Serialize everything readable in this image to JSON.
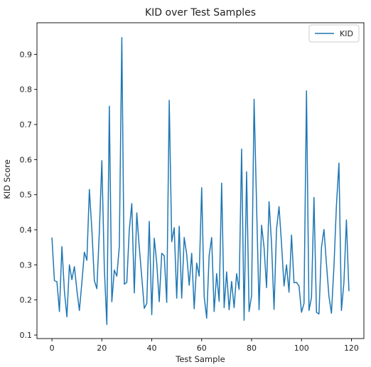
{
  "chart_data": {
    "type": "line",
    "title": "KID over Test Samples",
    "xlabel": "Test Sample",
    "ylabel": "KID Score",
    "xlim": [
      -6,
      125
    ],
    "ylim": [
      0.09,
      0.99
    ],
    "xticks": [
      0,
      20,
      40,
      60,
      80,
      100,
      120
    ],
    "yticks": [
      0.1,
      0.2,
      0.3,
      0.4,
      0.5,
      0.6,
      0.7,
      0.8,
      0.9
    ],
    "grid": false,
    "legend": "top-right",
    "series": [
      {
        "name": "KID",
        "color": "#1f77b4",
        "x": [
          0,
          1,
          2,
          3,
          4,
          5,
          6,
          7,
          8,
          9,
          10,
          11,
          12,
          13,
          14,
          15,
          16,
          17,
          18,
          19,
          20,
          21,
          22,
          23,
          24,
          25,
          26,
          27,
          28,
          29,
          30,
          31,
          32,
          33,
          34,
          35,
          36,
          37,
          38,
          39,
          40,
          41,
          42,
          43,
          44,
          45,
          46,
          47,
          48,
          49,
          50,
          51,
          52,
          53,
          54,
          55,
          56,
          57,
          58,
          59,
          60,
          61,
          62,
          63,
          64,
          65,
          66,
          67,
          68,
          69,
          70,
          71,
          72,
          73,
          74,
          75,
          76,
          77,
          78,
          79,
          80,
          81,
          82,
          83,
          84,
          85,
          86,
          87,
          88,
          89,
          90,
          91,
          92,
          93,
          94,
          95,
          96,
          97,
          98,
          99,
          100,
          101,
          102,
          103,
          104,
          105,
          106,
          107,
          108,
          109,
          110,
          111,
          112,
          113,
          114,
          115,
          116,
          117,
          118,
          119
        ],
        "values": [
          0.378,
          0.255,
          0.252,
          0.167,
          0.352,
          0.225,
          0.152,
          0.3,
          0.258,
          0.295,
          0.228,
          0.17,
          0.25,
          0.336,
          0.313,
          0.515,
          0.4,
          0.255,
          0.232,
          0.395,
          0.597,
          0.29,
          0.13,
          0.752,
          0.195,
          0.285,
          0.268,
          0.352,
          0.948,
          0.245,
          0.25,
          0.4,
          0.475,
          0.22,
          0.448,
          0.35,
          0.265,
          0.176,
          0.19,
          0.424,
          0.158,
          0.376,
          0.305,
          0.195,
          0.333,
          0.326,
          0.193,
          0.769,
          0.366,
          0.406,
          0.205,
          0.41,
          0.205,
          0.378,
          0.33,
          0.242,
          0.333,
          0.175,
          0.305,
          0.268,
          0.52,
          0.21,
          0.148,
          0.327,
          0.378,
          0.167,
          0.275,
          0.196,
          0.533,
          0.178,
          0.28,
          0.172,
          0.253,
          0.178,
          0.275,
          0.23,
          0.63,
          0.142,
          0.565,
          0.167,
          0.212,
          0.772,
          0.47,
          0.172,
          0.413,
          0.35,
          0.235,
          0.48,
          0.36,
          0.173,
          0.402,
          0.466,
          0.36,
          0.24,
          0.3,
          0.222,
          0.385,
          0.249,
          0.25,
          0.24,
          0.165,
          0.19,
          0.796,
          0.17,
          0.207,
          0.492,
          0.165,
          0.16,
          0.35,
          0.401,
          0.303,
          0.21,
          0.162,
          0.295,
          0.47,
          0.59,
          0.17,
          0.25,
          0.428,
          0.225
        ]
      }
    ]
  }
}
